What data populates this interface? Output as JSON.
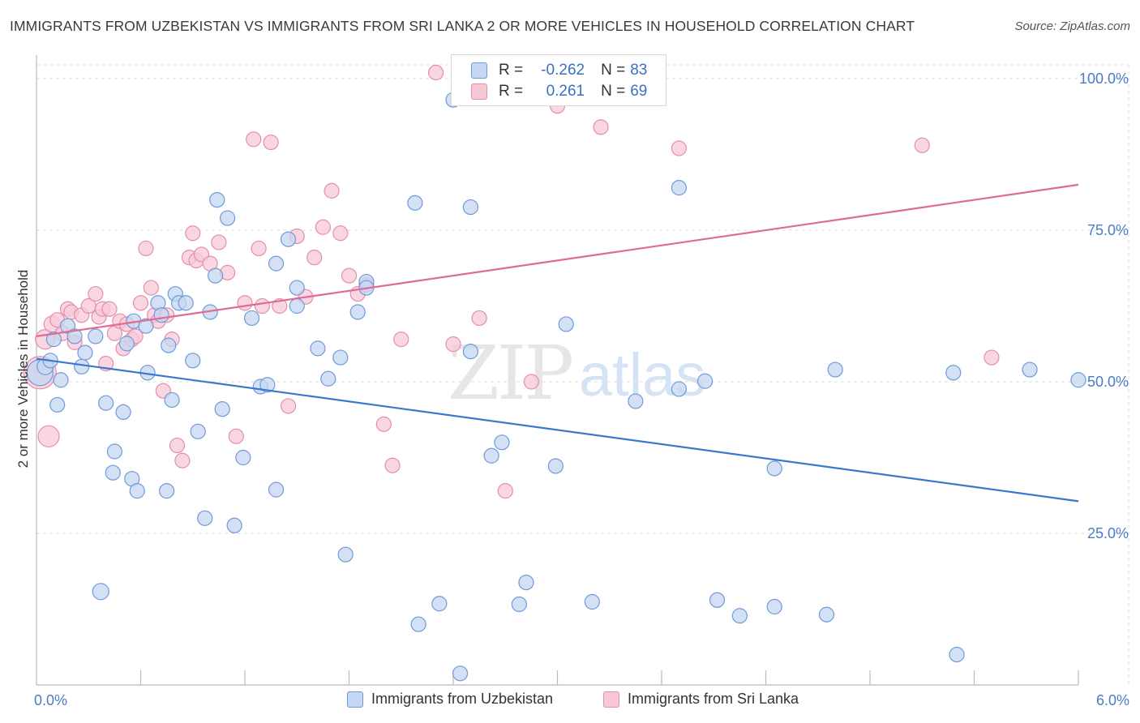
{
  "title": "IMMIGRANTS FROM UZBEKISTAN VS IMMIGRANTS FROM SRI LANKA 2 OR MORE VEHICLES IN HOUSEHOLD CORRELATION CHART",
  "source": "Source: ZipAtlas.com",
  "watermark": {
    "zip": "ZIP",
    "atlas": "atlas"
  },
  "legend": {
    "r_label": "R =",
    "n_label": "N =",
    "series1": {
      "r": "-0.262",
      "n": "83"
    },
    "series2": {
      "r": "0.261",
      "n": "69"
    }
  },
  "colors": {
    "blue_fill": "#c5d7f2",
    "blue_stroke": "#6f9ad9",
    "blue_line": "#3a78cc",
    "pink_fill": "#f8c8d8",
    "pink_stroke": "#e38faa",
    "pink_line": "#e06b93",
    "tick_color": "#4a7cc9",
    "grid": "#dddddd"
  },
  "chart_data": {
    "type": "scatter",
    "title": "IMMIGRANTS FROM UZBEKISTAN VS IMMIGRANTS FROM SRI LANKA 2 OR MORE VEHICLES IN HOUSEHOLD CORRELATION CHART",
    "xlabel": "",
    "ylabel": "2 or more Vehicles in Household",
    "x_range": [
      0.0,
      6.0
    ],
    "y_range": [
      0,
      105
    ],
    "x_tick_labels": [
      "0.0%",
      "6.0%"
    ],
    "y_ticks": [
      25,
      50,
      75,
      100
    ],
    "y_tick_labels": [
      "25.0%",
      "50.0%",
      "75.0%",
      "100.0%"
    ],
    "grid": true,
    "legend_position": "top-center",
    "series": [
      {
        "name": "Immigrants from Uzbekistan",
        "color": "blue",
        "r": -0.262,
        "n": 83,
        "trend": {
          "x": [
            0.0,
            6.0
          ],
          "y": [
            53.8,
            30.3
          ]
        },
        "points": [
          [
            0.02,
            51.5,
            16
          ],
          [
            0.05,
            52.5,
            10
          ],
          [
            0.08,
            53.5,
            9
          ],
          [
            0.1,
            57.0,
            9
          ],
          [
            0.12,
            46.2,
            9
          ],
          [
            0.14,
            50.3,
            9
          ],
          [
            0.18,
            59.2,
            9
          ],
          [
            0.22,
            57.5,
            9
          ],
          [
            0.26,
            52.5,
            9
          ],
          [
            0.28,
            54.8,
            9
          ],
          [
            0.34,
            57.5,
            9
          ],
          [
            0.37,
            15.4,
            10
          ],
          [
            0.4,
            46.5,
            9
          ],
          [
            0.45,
            38.5,
            9
          ],
          [
            0.5,
            45.0,
            9
          ],
          [
            0.44,
            35.0,
            9
          ],
          [
            0.55,
            34.0,
            9
          ],
          [
            0.56,
            60.0,
            9
          ],
          [
            0.58,
            32.0,
            9
          ],
          [
            0.63,
            59.2,
            9
          ],
          [
            0.64,
            51.5,
            9
          ],
          [
            0.7,
            63.0,
            9
          ],
          [
            0.72,
            61.0,
            9
          ],
          [
            0.75,
            32.0,
            9
          ],
          [
            0.76,
            56.0,
            9
          ],
          [
            0.78,
            47.0,
            9
          ],
          [
            0.8,
            64.5,
            9
          ],
          [
            0.82,
            63.0,
            9
          ],
          [
            0.86,
            63.0,
            9
          ],
          [
            0.9,
            53.5,
            9
          ],
          [
            0.93,
            41.8,
            9
          ],
          [
            0.97,
            27.5,
            9
          ],
          [
            1.0,
            61.5,
            9
          ],
          [
            1.03,
            67.5,
            9
          ],
          [
            1.04,
            80.0,
            9
          ],
          [
            1.07,
            45.5,
            9
          ],
          [
            1.1,
            77.0,
            9
          ],
          [
            1.14,
            26.3,
            9
          ],
          [
            1.19,
            37.5,
            9
          ],
          [
            1.24,
            60.5,
            9
          ],
          [
            1.29,
            49.2,
            9
          ],
          [
            1.33,
            49.5,
            9
          ],
          [
            1.38,
            32.2,
            9
          ],
          [
            1.38,
            69.5,
            9
          ],
          [
            1.45,
            73.5,
            9
          ],
          [
            1.5,
            65.5,
            9
          ],
          [
            1.5,
            62.5,
            9
          ],
          [
            1.62,
            55.5,
            9
          ],
          [
            1.68,
            50.5,
            9
          ],
          [
            1.75,
            54.0,
            9
          ],
          [
            1.78,
            21.5,
            9
          ],
          [
            1.85,
            61.5,
            9
          ],
          [
            1.9,
            66.5,
            9
          ],
          [
            1.9,
            65.5,
            9
          ],
          [
            2.18,
            79.5,
            9
          ],
          [
            2.2,
            10.0,
            9
          ],
          [
            2.4,
            96.5,
            9
          ],
          [
            2.5,
            78.8,
            9
          ],
          [
            2.5,
            55.0,
            9
          ],
          [
            2.32,
            13.4,
            9
          ],
          [
            2.44,
            1.9,
            9
          ],
          [
            2.62,
            37.8,
            9
          ],
          [
            2.68,
            40.0,
            9
          ],
          [
            2.78,
            13.3,
            9
          ],
          [
            2.82,
            16.9,
            9
          ],
          [
            2.99,
            36.1,
            9
          ],
          [
            3.05,
            59.5,
            9
          ],
          [
            3.2,
            13.7,
            9
          ],
          [
            3.45,
            46.8,
            9
          ],
          [
            3.7,
            82.0,
            9
          ],
          [
            3.7,
            48.8,
            9
          ],
          [
            3.85,
            50.1,
            9
          ],
          [
            3.92,
            14.0,
            9
          ],
          [
            4.05,
            11.4,
            9
          ],
          [
            4.25,
            12.9,
            9
          ],
          [
            4.25,
            35.7,
            9
          ],
          [
            4.55,
            11.6,
            9
          ],
          [
            4.6,
            52.0,
            9
          ],
          [
            5.28,
            51.5,
            9
          ],
          [
            5.3,
            5.0,
            9
          ],
          [
            5.72,
            52.0,
            9
          ],
          [
            6.0,
            50.3,
            9
          ],
          [
            0.52,
            56.3,
            9
          ]
        ]
      },
      {
        "name": "Immigrants from Sri Lanka",
        "color": "pink",
        "r": 0.261,
        "n": 69,
        "trend": {
          "x": [
            0.0,
            6.0
          ],
          "y": [
            57.5,
            82.5
          ]
        },
        "points": [
          [
            0.02,
            51.5,
            20
          ],
          [
            0.05,
            57.0,
            12
          ],
          [
            0.07,
            41.0,
            13
          ],
          [
            0.09,
            59.5,
            10
          ],
          [
            0.12,
            60.2,
            9
          ],
          [
            0.15,
            58.0,
            9
          ],
          [
            0.18,
            62.0,
            9
          ],
          [
            0.2,
            61.5,
            9
          ],
          [
            0.22,
            56.5,
            9
          ],
          [
            0.26,
            61.0,
            9
          ],
          [
            0.3,
            62.5,
            9
          ],
          [
            0.34,
            64.5,
            9
          ],
          [
            0.36,
            60.7,
            9
          ],
          [
            0.38,
            62.0,
            9
          ],
          [
            0.4,
            53.0,
            9
          ],
          [
            0.42,
            62.0,
            9
          ],
          [
            0.45,
            58.0,
            9
          ],
          [
            0.48,
            60.0,
            9
          ],
          [
            0.5,
            55.5,
            9
          ],
          [
            0.52,
            59.5,
            9
          ],
          [
            0.55,
            57.0,
            9
          ],
          [
            0.57,
            57.5,
            9
          ],
          [
            0.6,
            63.0,
            9
          ],
          [
            0.63,
            72.0,
            9
          ],
          [
            0.66,
            65.5,
            9
          ],
          [
            0.68,
            61.0,
            9
          ],
          [
            0.7,
            60.0,
            9
          ],
          [
            0.73,
            48.5,
            9
          ],
          [
            0.75,
            61.0,
            9
          ],
          [
            0.78,
            57.0,
            9
          ],
          [
            0.81,
            39.5,
            9
          ],
          [
            0.84,
            37.0,
            9
          ],
          [
            0.88,
            70.5,
            9
          ],
          [
            0.9,
            74.5,
            9
          ],
          [
            0.92,
            70.0,
            9
          ],
          [
            0.95,
            71.0,
            9
          ],
          [
            1.0,
            69.5,
            9
          ],
          [
            1.05,
            73.0,
            9
          ],
          [
            1.1,
            68.0,
            9
          ],
          [
            1.15,
            41.0,
            9
          ],
          [
            1.2,
            63.0,
            9
          ],
          [
            1.25,
            90.0,
            9
          ],
          [
            1.28,
            72.0,
            9
          ],
          [
            1.3,
            62.5,
            9
          ],
          [
            1.35,
            89.5,
            9
          ],
          [
            1.4,
            62.5,
            9
          ],
          [
            1.45,
            46.0,
            9
          ],
          [
            1.5,
            74.0,
            9
          ],
          [
            1.55,
            64.0,
            9
          ],
          [
            1.6,
            70.5,
            9
          ],
          [
            1.65,
            75.5,
            9
          ],
          [
            1.7,
            81.5,
            9
          ],
          [
            1.75,
            74.5,
            9
          ],
          [
            1.8,
            67.5,
            9
          ],
          [
            1.85,
            64.5,
            9
          ],
          [
            1.9,
            66.0,
            9
          ],
          [
            2.0,
            43.0,
            9
          ],
          [
            2.05,
            36.2,
            9
          ],
          [
            2.1,
            57.0,
            9
          ],
          [
            2.3,
            101.0,
            9
          ],
          [
            2.4,
            56.2,
            9
          ],
          [
            2.55,
            60.5,
            9
          ],
          [
            2.7,
            32.0,
            9
          ],
          [
            2.85,
            50.0,
            9
          ],
          [
            3.0,
            95.5,
            9
          ],
          [
            3.25,
            92.0,
            9
          ],
          [
            3.7,
            88.5,
            9
          ],
          [
            5.1,
            89.0,
            9
          ],
          [
            5.5,
            54.0,
            9
          ]
        ]
      }
    ]
  }
}
